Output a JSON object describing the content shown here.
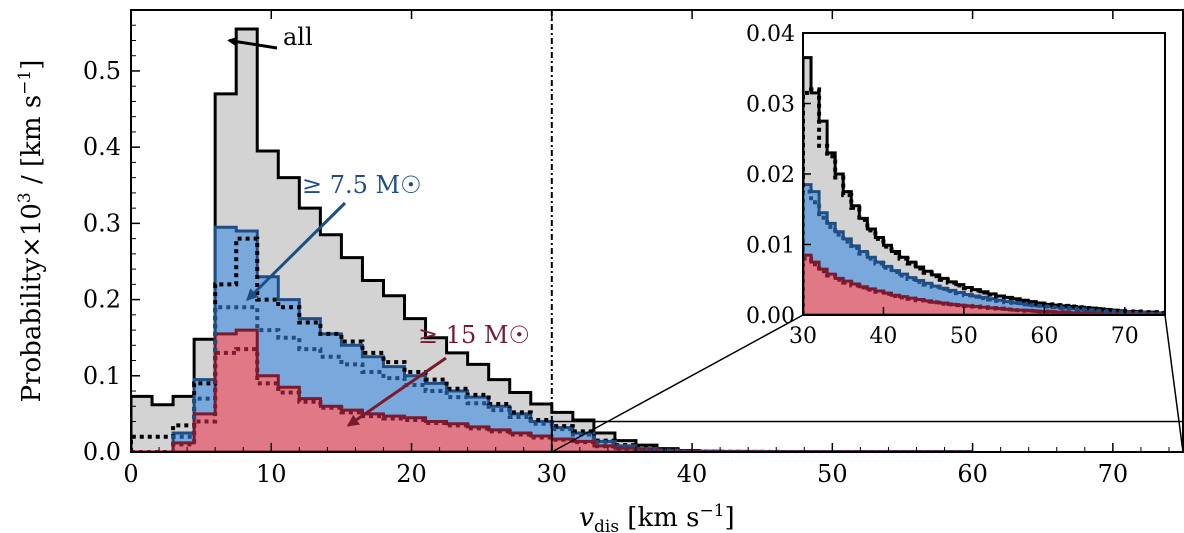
{
  "chart_data": {
    "type": "histogram",
    "xlabel": "v_dis [km s^-1]",
    "ylabel": "Probability × 10^3 / [km s^-1]",
    "xlim": [
      0,
      75
    ],
    "ylim": [
      0,
      0.58
    ],
    "xticks": [
      0,
      10,
      20,
      30,
      40,
      50,
      60,
      70
    ],
    "yticks": [
      0.0,
      0.1,
      0.2,
      0.3,
      0.4,
      0.5
    ],
    "bin_width": 1.5,
    "bin_start": 0,
    "vline_x": 30,
    "series": [
      {
        "name": "all",
        "style": "solid-filled",
        "fill": "#d3d3d3",
        "stroke": "#000000",
        "values": [
          0.073,
          0.062,
          0.073,
          0.148,
          0.47,
          0.555,
          0.395,
          0.36,
          0.32,
          0.285,
          0.255,
          0.225,
          0.205,
          0.175,
          0.15,
          0.13,
          0.115,
          0.095,
          0.078,
          0.063,
          0.052,
          0.042,
          0.025,
          0.015,
          0.009,
          0.0045,
          0.002,
          0.001,
          0.0005,
          0.0003,
          0.0002,
          0.0001,
          5e-05,
          3e-05,
          2e-05,
          1e-05,
          5e-06,
          0.0,
          0.0,
          0.0
        ]
      },
      {
        "name": "≥ 7.5 M☉",
        "style": "solid-filled",
        "fill": "#79a9dc",
        "stroke": "#1f4e85",
        "values": [
          0.0,
          0.0,
          0.025,
          0.095,
          0.295,
          0.29,
          0.23,
          0.2,
          0.175,
          0.155,
          0.14,
          0.125,
          0.112,
          0.1,
          0.09,
          0.08,
          0.072,
          0.06,
          0.05,
          0.04,
          0.032,
          0.025,
          0.014,
          0.008,
          0.0045,
          0.0022,
          0.001,
          0.0005,
          0.0003,
          0.0002,
          0.0001,
          5e-05,
          3e-05,
          2e-05,
          1e-05,
          5e-06,
          0.0,
          0.0,
          0.0,
          0.0
        ]
      },
      {
        "name": "≥ 15 M☉",
        "style": "solid-filled",
        "fill": "#e07886",
        "stroke": "#7b1a2e",
        "values": [
          0.0,
          0.0,
          0.012,
          0.05,
          0.155,
          0.16,
          0.1,
          0.085,
          0.07,
          0.06,
          0.055,
          0.05,
          0.047,
          0.045,
          0.04,
          0.037,
          0.033,
          0.029,
          0.025,
          0.021,
          0.017,
          0.014,
          0.008,
          0.005,
          0.003,
          0.0014,
          0.0007,
          0.0004,
          0.0002,
          0.0001,
          5e-05,
          3e-05,
          2e-05,
          1e-05,
          0.0,
          0.0,
          0.0,
          0.0,
          0.0,
          0.0
        ]
      },
      {
        "name": "",
        "style": "dotted",
        "stroke": "#000000",
        "values": [
          0.02,
          0.02,
          0.035,
          0.09,
          0.22,
          0.28,
          0.2,
          0.19,
          0.17,
          0.155,
          0.145,
          0.13,
          0.118,
          0.105,
          0.095,
          0.083,
          0.075,
          0.063,
          0.052,
          0.042,
          0.034,
          0.027,
          0.015,
          0.009,
          0.005,
          0.0025,
          0.0012,
          0.0006,
          0.0003,
          0.0002,
          0.0001,
          5e-05,
          3e-05,
          2e-05,
          1e-05,
          0.0,
          0.0,
          0.0,
          0.0,
          0.0
        ]
      },
      {
        "name": "",
        "style": "dotted",
        "stroke": "#1f4e85",
        "values": [
          0.0,
          0.0,
          0.02,
          0.07,
          0.19,
          0.19,
          0.16,
          0.15,
          0.135,
          0.125,
          0.115,
          0.105,
          0.097,
          0.088,
          0.08,
          0.072,
          0.064,
          0.055,
          0.046,
          0.037,
          0.03,
          0.023,
          0.013,
          0.0075,
          0.004,
          0.002,
          0.0009,
          0.0005,
          0.0002,
          0.0001,
          5e-05,
          3e-05,
          2e-05,
          1e-05,
          0.0,
          0.0,
          0.0,
          0.0,
          0.0,
          0.0
        ]
      },
      {
        "name": "",
        "style": "dotted",
        "stroke": "#7b1a2e",
        "values": [
          0.0,
          0.0,
          0.01,
          0.04,
          0.13,
          0.135,
          0.09,
          0.078,
          0.066,
          0.058,
          0.052,
          0.047,
          0.044,
          0.042,
          0.038,
          0.035,
          0.031,
          0.027,
          0.023,
          0.019,
          0.016,
          0.013,
          0.0075,
          0.0045,
          0.0028,
          0.0013,
          0.0006,
          0.0003,
          0.0002,
          0.0001,
          5e-05,
          3e-05,
          2e-05,
          1e-05,
          0.0,
          0.0,
          0.0,
          0.0,
          0.0,
          0.0
        ]
      }
    ],
    "annotations": [
      {
        "text": "all",
        "color": "#000000",
        "tip": [
          7.0,
          0.54
        ]
      },
      {
        "text": "≥ 7.5 M☉",
        "color": "#1f4e85",
        "tip": [
          8.3,
          0.2
        ]
      },
      {
        "text": "≥ 15 M☉",
        "color": "#7b1a2e",
        "tip": [
          15.5,
          0.035
        ]
      }
    ],
    "inset": {
      "xlim": [
        30,
        75
      ],
      "ylim": [
        0,
        0.04
      ],
      "xticks": [
        30,
        40,
        50,
        60,
        70
      ],
      "yticks": [
        0.0,
        0.01,
        0.02,
        0.03,
        0.04
      ],
      "ytick_labels": [
        "0.00",
        "0.01",
        "0.02",
        "0.03",
        "0.04"
      ],
      "bin_width": 1.0,
      "bin_start": 30,
      "series": [
        {
          "style": "solid-filled",
          "fill": "#d3d3d3",
          "stroke": "#000000",
          "values": [
            0.0365,
            0.0315,
            0.0275,
            0.023,
            0.02,
            0.0175,
            0.0155,
            0.0137,
            0.0122,
            0.011,
            0.0099,
            0.009,
            0.0082,
            0.0075,
            0.0068,
            0.0062,
            0.0057,
            0.0052,
            0.0047,
            0.0043,
            0.0039,
            0.0036,
            0.0033,
            0.003,
            0.0027,
            0.0025,
            0.0023,
            0.0021,
            0.0019,
            0.0017,
            0.0015,
            0.0014,
            0.0013,
            0.0012,
            0.0011,
            0.001,
            0.0009,
            0.0008,
            0.0007,
            0.0006,
            0.0005,
            0.0005,
            0.0004,
            0.0004,
            0.0003
          ]
        },
        {
          "style": "solid-filled",
          "fill": "#79a9dc",
          "stroke": "#1f4e85",
          "values": [
            0.0185,
            0.0175,
            0.0145,
            0.013,
            0.0118,
            0.0108,
            0.0098,
            0.009,
            0.0082,
            0.0075,
            0.0069,
            0.0063,
            0.0058,
            0.0053,
            0.0049,
            0.0045,
            0.0041,
            0.0038,
            0.0035,
            0.0032,
            0.0029,
            0.0027,
            0.0025,
            0.0023,
            0.0021,
            0.0019,
            0.0017,
            0.0016,
            0.0014,
            0.0013,
            0.0012,
            0.0011,
            0.001,
            0.0009,
            0.0008,
            0.0007,
            0.0006,
            0.0006,
            0.0005,
            0.0004,
            0.0004,
            0.0003,
            0.0003,
            0.0002,
            0.0002
          ]
        },
        {
          "style": "solid-filled",
          "fill": "#e07886",
          "stroke": "#7b1a2e",
          "values": [
            0.0085,
            0.0075,
            0.0065,
            0.0058,
            0.0052,
            0.0048,
            0.0044,
            0.004,
            0.0037,
            0.0034,
            0.0031,
            0.0028,
            0.0026,
            0.0024,
            0.0022,
            0.002,
            0.0018,
            0.0017,
            0.0015,
            0.0014,
            0.0013,
            0.0012,
            0.0011,
            0.001,
            0.0009,
            0.0008,
            0.0007,
            0.0007,
            0.0006,
            0.0005,
            0.0005,
            0.0004,
            0.0004,
            0.0003,
            0.0003,
            0.0003,
            0.0002,
            0.0002,
            0.0002,
            0.0001,
            0.0001,
            0.0001,
            0.0001,
            0.0001,
            0.0001
          ]
        },
        {
          "style": "dotted",
          "stroke": "#000000",
          "values": [
            0.0315,
            0.032,
            0.024,
            0.0225,
            0.0195,
            0.017,
            0.0152,
            0.0135,
            0.012,
            0.0108,
            0.0097,
            0.0088,
            0.008,
            0.0073,
            0.0066,
            0.006,
            0.0055,
            0.005,
            0.0046,
            0.0042,
            0.0038,
            0.0035,
            0.0032,
            0.0029,
            0.0026,
            0.0024,
            0.0022,
            0.002,
            0.0018,
            0.0016,
            0.0015,
            0.0014,
            0.0013,
            0.0012,
            0.0011,
            0.001,
            0.0009,
            0.0008,
            0.0007,
            0.0006,
            0.0005,
            0.0005,
            0.0004,
            0.0004,
            0.0003
          ]
        },
        {
          "style": "dotted",
          "stroke": "#1f4e85",
          "values": [
            0.0175,
            0.016,
            0.0138,
            0.0125,
            0.0114,
            0.0104,
            0.0095,
            0.0087,
            0.008,
            0.0073,
            0.0067,
            0.0061,
            0.0056,
            0.0051,
            0.0047,
            0.0043,
            0.004,
            0.0037,
            0.0034,
            0.0031,
            0.0028,
            0.0026,
            0.0024,
            0.0022,
            0.002,
            0.0018,
            0.0017,
            0.0015,
            0.0014,
            0.0013,
            0.0012,
            0.0011,
            0.001,
            0.0009,
            0.0008,
            0.0007,
            0.0006,
            0.0005,
            0.0005,
            0.0004,
            0.0004,
            0.0003,
            0.0003,
            0.0002,
            0.0002
          ]
        },
        {
          "style": "dotted",
          "stroke": "#7b1a2e",
          "values": [
            0.008,
            0.0072,
            0.0062,
            0.0056,
            0.005,
            0.0046,
            0.0042,
            0.0039,
            0.0036,
            0.0033,
            0.003,
            0.0027,
            0.0025,
            0.0023,
            0.0021,
            0.0019,
            0.0018,
            0.0016,
            0.0015,
            0.0014,
            0.0013,
            0.0012,
            0.0011,
            0.001,
            0.0009,
            0.0008,
            0.0007,
            0.0006,
            0.0006,
            0.0005,
            0.0005,
            0.0004,
            0.0004,
            0.0003,
            0.0003,
            0.0002,
            0.0002,
            0.0002,
            0.0002,
            0.0001,
            0.0001,
            0.0001,
            0.0001,
            0.0001,
            0.0001
          ]
        }
      ]
    }
  }
}
